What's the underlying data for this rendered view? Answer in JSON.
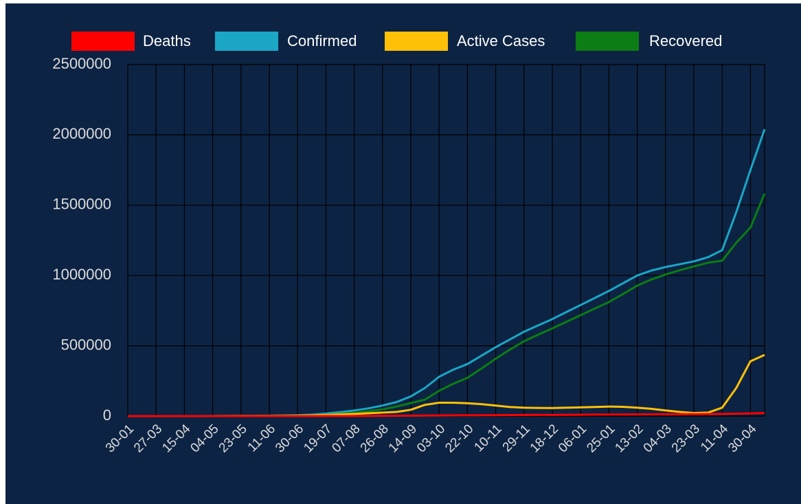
{
  "chart_data": {
    "type": "line",
    "categories": [
      "30-01",
      null,
      "27-03",
      null,
      "15-04",
      null,
      "04-05",
      null,
      "23-05",
      null,
      "11-06",
      null,
      "30-06",
      null,
      "19-07",
      null,
      "07-08",
      null,
      "26-08",
      null,
      "14-09",
      null,
      "03-10",
      null,
      "22-10",
      null,
      "10-11",
      null,
      "29-11",
      null,
      "18-12",
      null,
      "06-01",
      null,
      "25-01",
      null,
      "13-02",
      null,
      "04-03",
      null,
      "23-03",
      null,
      "11-04",
      null,
      "30-04",
      null
    ],
    "series": [
      {
        "name": "Deaths",
        "color": "#ff0000",
        "values": [
          0,
          0,
          0,
          0,
          0,
          0,
          0,
          0,
          0,
          0,
          0,
          0,
          100,
          200,
          400,
          700,
          1000,
          1500,
          2000,
          2500,
          3000,
          4000,
          5000,
          5500,
          6000,
          6500,
          7000,
          7500,
          8000,
          8500,
          9000,
          9500,
          10000,
          10500,
          11000,
          11500,
          12000,
          12500,
          13000,
          13500,
          14000,
          14500,
          15000,
          17000,
          19000,
          22000
        ]
      },
      {
        "name": "Confirmed",
        "color": "#1ba6c6",
        "values": [
          0,
          0,
          0,
          0,
          0,
          0,
          500,
          1000,
          1500,
          2000,
          3000,
          5000,
          7000,
          10000,
          18000,
          28000,
          40000,
          55000,
          75000,
          100000,
          140000,
          200000,
          280000,
          330000,
          370000,
          430000,
          490000,
          545000,
          600000,
          645000,
          690000,
          740000,
          790000,
          840000,
          890000,
          945000,
          1000000,
          1035000,
          1060000,
          1080000,
          1100000,
          1130000,
          1180000,
          1450000,
          1750000,
          2040000
        ]
      },
      {
        "name": "Active Cases",
        "color": "#ffc107",
        "values": [
          0,
          0,
          0,
          0,
          0,
          0,
          200,
          500,
          800,
          1000,
          1500,
          2000,
          3000,
          5000,
          8000,
          12000,
          15000,
          20000,
          25000,
          30000,
          45000,
          80000,
          95000,
          95000,
          92000,
          85000,
          75000,
          65000,
          60000,
          58000,
          57000,
          60000,
          62000,
          65000,
          68000,
          66000,
          60000,
          52000,
          40000,
          30000,
          22000,
          25000,
          60000,
          200000,
          390000,
          435000
        ]
      },
      {
        "name": "Recovered",
        "color": "#0b7d14",
        "values": [
          0,
          0,
          0,
          0,
          0,
          0,
          300,
          500,
          700,
          1000,
          1500,
          3000,
          4000,
          5000,
          10000,
          15500,
          24000,
          34000,
          48000,
          68000,
          93000,
          117000,
          180000,
          230000,
          272000,
          339000,
          408000,
          473000,
          532000,
          579000,
          624000,
          671000,
          718000,
          765000,
          811000,
          868000,
          928000,
          971000,
          1007000,
          1037000,
          1064000,
          1091000,
          1105000,
          1233000,
          1341000,
          1583000
        ]
      }
    ],
    "ylim": [
      0,
      2500000
    ],
    "yticks": [
      0,
      500000,
      1000000,
      1500000,
      2000000,
      2500000
    ],
    "grid": true,
    "legend": "top"
  }
}
